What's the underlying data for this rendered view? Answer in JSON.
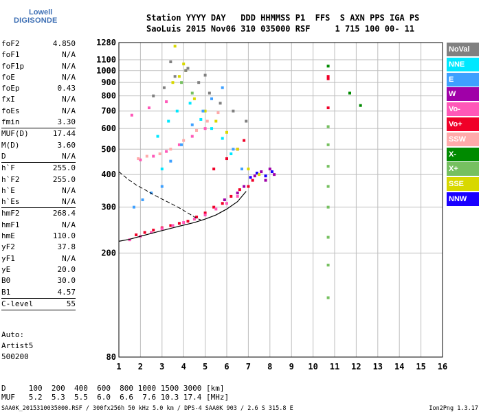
{
  "logo": {
    "line1": "Lowell",
    "line2": "DIGISONDE"
  },
  "header": {
    "line1": "Station YYYY DAY   DDD HHMMSS P1  FFS  S AXN PPS IGA PS",
    "line2": "SaoLuis 2015 Nov06 310 035000 RSF     1 715 100 00- 11"
  },
  "parameters": [
    {
      "label": "foF2",
      "value": "4.850"
    },
    {
      "label": "foF1",
      "value": "N/A"
    },
    {
      "label": "foF1p",
      "value": "N/A"
    },
    {
      "label": "foE",
      "value": "N/A"
    },
    {
      "label": "foEp",
      "value": "0.43"
    },
    {
      "label": "fxI",
      "value": "N/A"
    },
    {
      "label": "foEs",
      "value": "N/A"
    },
    {
      "label": "fmin",
      "value": "3.30"
    },
    {
      "sep": true
    },
    {
      "label": "MUF(D)",
      "value": "17.44"
    },
    {
      "label": "M(D)",
      "value": "3.60"
    },
    {
      "label": "D",
      "value": "N/A"
    },
    {
      "sep": true
    },
    {
      "label": "h`F",
      "value": "255.0"
    },
    {
      "label": "h`F2",
      "value": "255.0"
    },
    {
      "label": "h`E",
      "value": "N/A"
    },
    {
      "label": "h`Es",
      "value": "N/A"
    },
    {
      "sep": true
    },
    {
      "label": "hmF2",
      "value": "268.4"
    },
    {
      "label": "hmF1",
      "value": "N/A"
    },
    {
      "label": "hmE",
      "value": "110.0"
    },
    {
      "label": "yF2",
      "value": "37.8"
    },
    {
      "label": "yF1",
      "value": "N/A"
    },
    {
      "label": "yE",
      "value": "20.0"
    },
    {
      "label": "B0",
      "value": "30.0"
    },
    {
      "label": "B1",
      "value": "4.57"
    },
    {
      "sep": true
    },
    {
      "label": "C-level",
      "value": "55"
    },
    {
      "sep": true
    }
  ],
  "auto": {
    "line1": "Auto:",
    "line2": "Artist5",
    "line3": "500200"
  },
  "footer": {
    "d_row": "D     100  200  400  600  800 1000 1500 3000 [km]",
    "muf_row": "MUF   5.2  5.3  5.5  6.0  6.6  7.6 10.3 17.4 [MHz]"
  },
  "source_line": "SAA0K_2015310035000.RSF / 300fx256h 50 kHz 5.0 km / DPS-4 SAA0K 903 / 2.6 S 315.8 E",
  "version": "Ion2Png 1.3.17",
  "legend": [
    {
      "label": "NoVal",
      "bg": "#808080",
      "fg": "#ffffff"
    },
    {
      "label": "NNE",
      "bg": "#00e8ff",
      "fg": "#ffffff"
    },
    {
      "label": "E",
      "bg": "#3ea0ff",
      "fg": "#ffffff"
    },
    {
      "label": "W",
      "bg": "#a000a8",
      "fg": "#ffffff"
    },
    {
      "label": "Vo-",
      "bg": "#ff58b8",
      "fg": "#ffffff"
    },
    {
      "label": "Vo+",
      "bg": "#f00028",
      "fg": "#ffffff"
    },
    {
      "label": "SSW",
      "bg": "#ffaaaa",
      "fg": "#ffffff"
    },
    {
      "label": "X-",
      "bg": "#008a00",
      "fg": "#ffffff"
    },
    {
      "label": "X+",
      "bg": "#76c060",
      "fg": "#ffffff"
    },
    {
      "label": "SSE",
      "bg": "#d8d800",
      "fg": "#ffffff"
    },
    {
      "label": "NNW",
      "bg": "#1a00ff",
      "fg": "#ffffff"
    }
  ],
  "chart_data": {
    "type": "scatter",
    "title": "",
    "xlabel": "",
    "ylabel": "",
    "xlim": [
      1,
      16
    ],
    "ylim": [
      80,
      1280
    ],
    "y_scale": "log",
    "xticks": [
      1,
      2,
      3,
      4,
      5,
      6,
      7,
      8,
      9,
      10,
      11,
      12,
      13,
      14,
      15,
      16
    ],
    "yticks": [
      80,
      200,
      300,
      400,
      500,
      600,
      700,
      800,
      900,
      1000,
      1100,
      1280
    ],
    "grid": true,
    "legend_placement": "right",
    "series": [
      {
        "name": "Vo+",
        "color": "#f00028",
        "x": [
          1.8,
          2.2,
          2.6,
          3.0,
          3.4,
          3.8,
          4.2,
          4.6,
          5.0,
          5.4,
          5.8,
          6.2,
          6.6,
          7.0,
          7.2,
          5.4,
          6.0,
          6.5,
          6.8,
          10.7,
          10.7,
          10.7
        ],
        "y": [
          235,
          240,
          245,
          250,
          255,
          260,
          265,
          275,
          285,
          300,
          310,
          330,
          350,
          360,
          380,
          420,
          460,
          500,
          540,
          930,
          950,
          720
        ]
      },
      {
        "name": "Vo-",
        "color": "#ff58b8",
        "x": [
          1.5,
          2.0,
          2.5,
          3.0,
          3.5,
          4.0,
          4.5,
          5.0,
          5.5,
          6.0,
          6.5,
          2.0,
          2.6,
          3.2,
          3.8,
          4.4,
          5.0,
          1.6,
          2.4,
          3.2
        ],
        "y": [
          225,
          232,
          240,
          248,
          255,
          262,
          270,
          280,
          295,
          310,
          330,
          455,
          470,
          490,
          520,
          560,
          600,
          675,
          720,
          760
        ]
      },
      {
        "name": "W",
        "color": "#a000a8",
        "x": [
          7.3,
          7.6,
          8.0,
          8.2,
          7.8,
          6.5,
          6.8,
          5.9
        ],
        "y": [
          395,
          410,
          420,
          400,
          380,
          340,
          360,
          320
        ]
      },
      {
        "name": "NNW",
        "color": "#1a00ff",
        "x": [
          7.4,
          7.8,
          8.1,
          7.1
        ],
        "y": [
          405,
          395,
          410,
          390
        ]
      },
      {
        "name": "SSE",
        "color": "#d8d800",
        "x": [
          3.5,
          3.8,
          4.1,
          4.5,
          5.0,
          5.5,
          6.0,
          6.5,
          7.0,
          7.5,
          3.6,
          4.0
        ],
        "y": [
          900,
          950,
          1000,
          780,
          700,
          640,
          580,
          500,
          420,
          400,
          1240,
          1060
        ]
      },
      {
        "name": "X+",
        "color": "#76c060",
        "x": [
          10.7,
          10.7,
          10.7,
          10.7,
          10.7,
          10.7,
          10.7,
          10.7,
          3.9,
          4.4
        ],
        "y": [
          135,
          180,
          230,
          300,
          360,
          430,
          520,
          610,
          900,
          820
        ]
      },
      {
        "name": "X-",
        "color": "#008a00",
        "x": [
          11.7,
          12.2,
          10.7
        ],
        "y": [
          820,
          735,
          1040
        ]
      },
      {
        "name": "E",
        "color": "#3ea0ff",
        "x": [
          1.7,
          2.1,
          2.5,
          3.0,
          3.4,
          3.9,
          4.4,
          4.9,
          5.3,
          5.8,
          6.3,
          6.7
        ],
        "y": [
          300,
          320,
          340,
          360,
          450,
          520,
          620,
          700,
          780,
          860,
          500,
          420
        ]
      },
      {
        "name": "NNE",
        "color": "#00e8ff",
        "x": [
          2.8,
          3.3,
          3.7,
          4.3,
          4.8,
          5.3,
          5.8,
          6.2,
          3.0
        ],
        "y": [
          560,
          640,
          700,
          750,
          650,
          600,
          550,
          480,
          420
        ]
      },
      {
        "name": "SSW",
        "color": "#ffaaaa",
        "x": [
          1.9,
          2.3,
          2.9,
          3.4,
          4.0,
          4.6,
          5.1,
          5.6
        ],
        "y": [
          460,
          470,
          480,
          500,
          540,
          590,
          640,
          690
        ]
      },
      {
        "name": "NoVal",
        "color": "#808080",
        "x": [
          2.6,
          3.1,
          3.6,
          4.1,
          4.7,
          5.2,
          5.7,
          6.3,
          6.9,
          3.4,
          4.2,
          5.0
        ],
        "y": [
          800,
          860,
          950,
          1000,
          900,
          820,
          750,
          700,
          640,
          1080,
          1020,
          960
        ]
      }
    ],
    "trace_line": {
      "x": [
        1.0,
        1.5,
        2.0,
        2.5,
        3.0,
        3.5,
        4.0,
        4.5,
        5.0,
        5.5,
        6.0,
        6.5,
        6.9
      ],
      "y": [
        222,
        226,
        232,
        238,
        244,
        250,
        256,
        262,
        270,
        280,
        295,
        315,
        345
      ]
    },
    "profile_line": {
      "x": [
        1.0,
        1.4,
        1.8,
        2.2,
        2.6,
        3.0,
        3.4,
        3.8,
        4.2,
        4.6,
        4.8
      ],
      "y": [
        410,
        385,
        365,
        350,
        335,
        322,
        310,
        298,
        285,
        272,
        268
      ]
    }
  }
}
